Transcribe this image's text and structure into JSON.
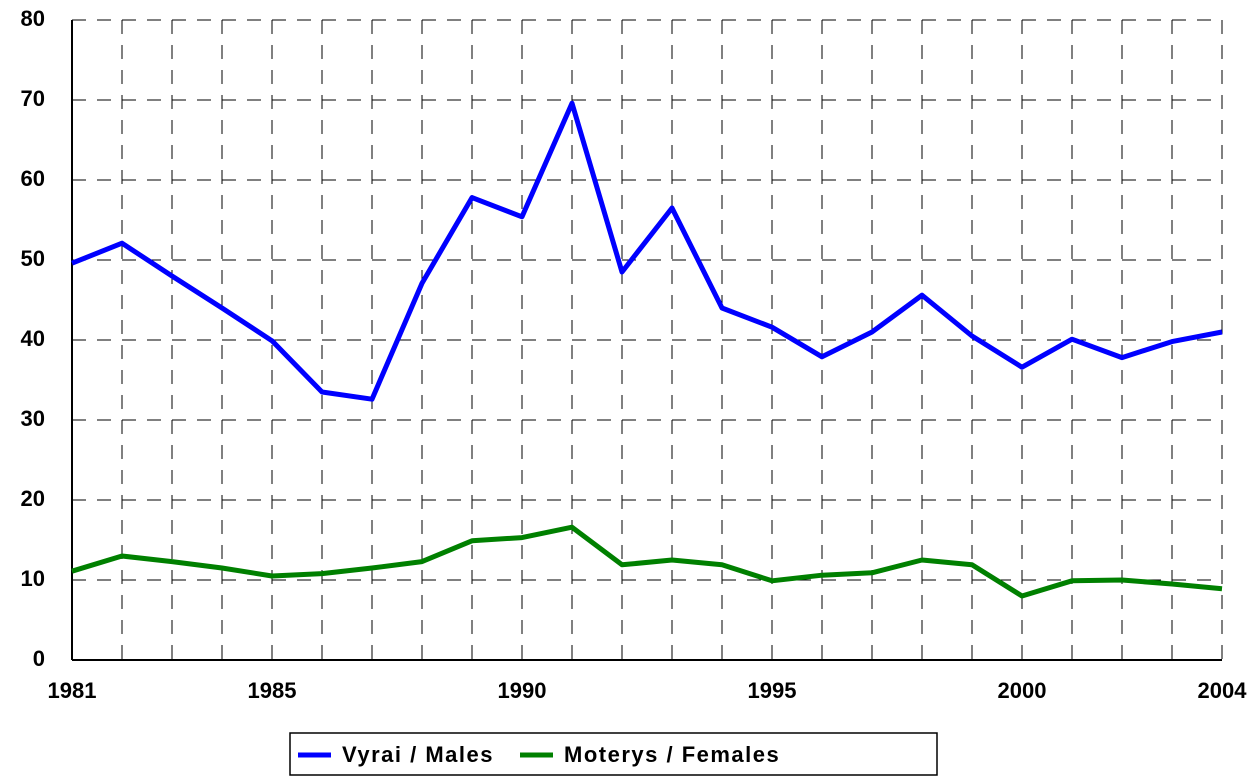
{
  "chart_data": {
    "type": "line",
    "x": [
      1981,
      1982,
      1983,
      1984,
      1985,
      1986,
      1987,
      1988,
      1989,
      1990,
      1991,
      1992,
      1993,
      1994,
      1995,
      1996,
      1997,
      1998,
      1999,
      2000,
      2001,
      2002,
      2003,
      2004
    ],
    "series": [
      {
        "name": "Vyrai / Males",
        "color": "#0000ff",
        "values": [
          49.6,
          52.1,
          48,
          44,
          39.9,
          33.5,
          32.6,
          47.1,
          57.8,
          55.4,
          69.6,
          48.5,
          56.5,
          44,
          41.6,
          37.9,
          41,
          45.6,
          40.5,
          36.6,
          40.1,
          37.8,
          39.8,
          41
        ]
      },
      {
        "name": "Moterys / Females",
        "color": "#008000",
        "values": [
          11.1,
          13,
          12.3,
          11.5,
          10.5,
          10.8,
          11.5,
          12.3,
          14.9,
          15.3,
          16.6,
          11.9,
          12.5,
          11.9,
          9.9,
          10.6,
          10.9,
          12.5,
          11.9,
          8,
          9.9,
          10,
          9.5,
          8.9
        ]
      }
    ],
    "xlim": [
      1981,
      2004
    ],
    "xticks": [
      1981,
      1985,
      1990,
      1995,
      2000,
      2004
    ],
    "ylim": [
      0,
      80
    ],
    "yticks": [
      0,
      10,
      20,
      30,
      40,
      50,
      60,
      70,
      80
    ],
    "grid": true,
    "legend": "bottom"
  }
}
